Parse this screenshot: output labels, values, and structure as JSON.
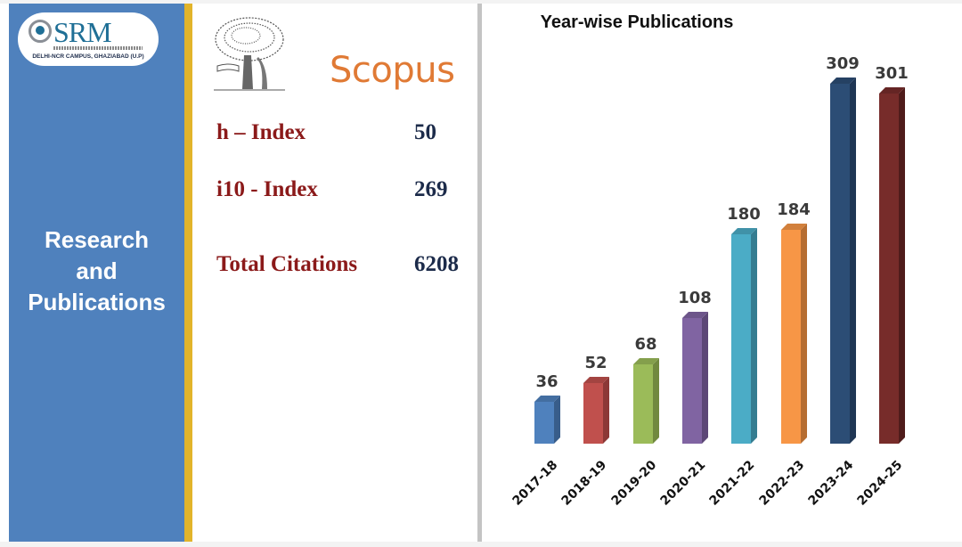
{
  "logo": {
    "name": "SRM",
    "campus": "DELHI-NCR CAMPUS, GHAZIABAD (U.P)"
  },
  "left_panel": {
    "title_lines": [
      "Research",
      "and",
      "Publications"
    ],
    "color": "#4f81bd",
    "stripe_color": "#e2b42a"
  },
  "scopus": {
    "brand": "Scopus",
    "brand_color": "#e07a35",
    "metrics": [
      {
        "label": "h – Index",
        "value": "50"
      },
      {
        "label": "i10 - Index",
        "value": "269"
      },
      {
        "label": "Total Citations",
        "value": "6208"
      }
    ]
  },
  "chart_data": {
    "type": "bar",
    "title": "Year-wise Publications",
    "xlabel": "",
    "ylabel": "",
    "categories": [
      "2017-18",
      "2018-19",
      "2019-20",
      "2020-21",
      "2021-22",
      "2022-23",
      "2023-24",
      "2024-25"
    ],
    "values": [
      36,
      52,
      68,
      108,
      180,
      184,
      309,
      301
    ],
    "colors": [
      "#4f81bd",
      "#c0504d",
      "#9bbb59",
      "#8064a2",
      "#4bacc6",
      "#f79646",
      "#2c4d75",
      "#772c2a"
    ],
    "side_colors": [
      "#385d8a",
      "#8c3836",
      "#71893f",
      "#5c4776",
      "#357d91",
      "#b66d31",
      "#1f3654",
      "#4f1c1b"
    ],
    "data_labels": true,
    "grid": false,
    "legend": "none",
    "style": "3d-column"
  }
}
